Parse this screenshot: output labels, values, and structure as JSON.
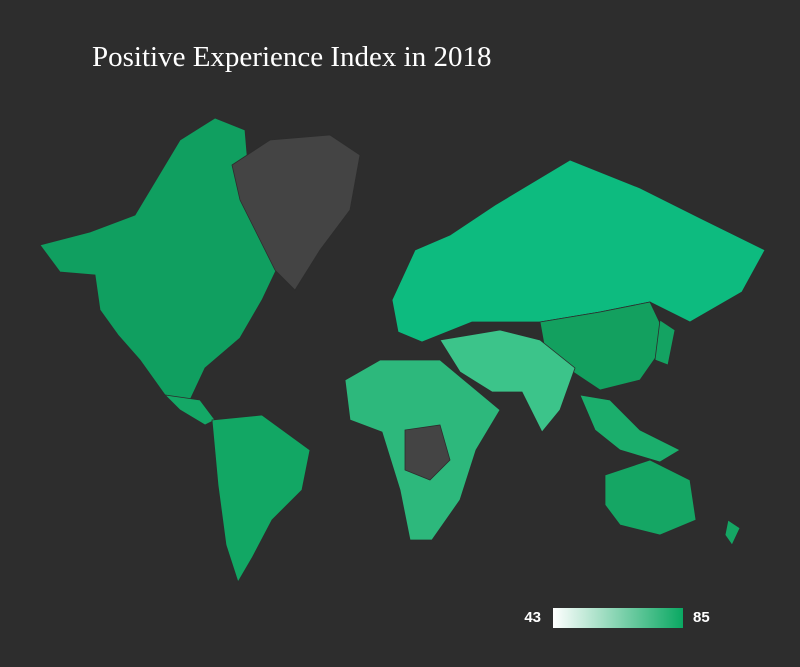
{
  "title": "Positive Experience Index in 2018",
  "legend": {
    "min": "43",
    "max": "85",
    "colors": [
      "#ffffff",
      "#0aa862"
    ]
  }
}
